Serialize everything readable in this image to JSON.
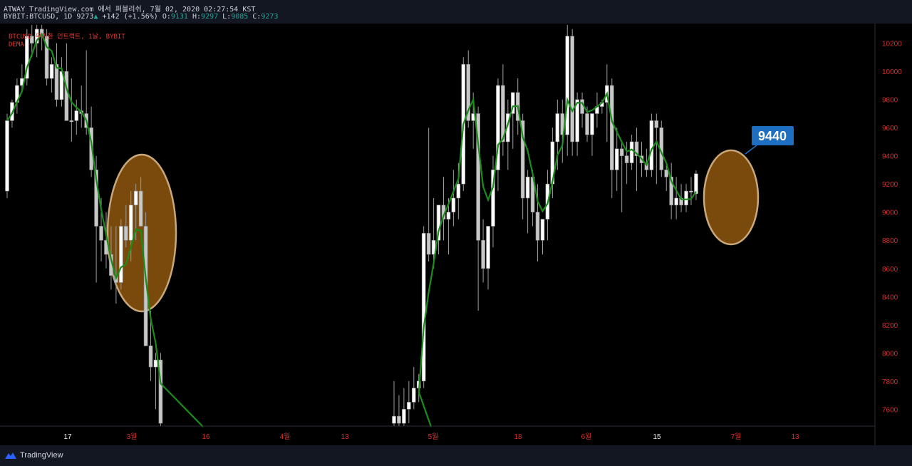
{
  "header": {
    "line1": "ATWAY TradingView.com 에서 퍼블리쉬, 7월 02, 2020 02:27:54 KST",
    "symbol": "BYBIT:BTCUSD, 1D",
    "last": "9273",
    "change": "+142 (+1.56%)",
    "open_label": "O:",
    "open": "9131",
    "high_label": "H:",
    "high": "9297",
    "low_label": "L:",
    "low": "9085",
    "close_label": "C:",
    "close": "9273"
  },
  "legend": {
    "series": "BTCUSD 무기한 인트랙트, 1날, BYBIT",
    "indicator": "DEMA"
  },
  "footer": {
    "brand": "TradingView"
  },
  "chart_data": {
    "type": "candlestick",
    "y_ticks": [
      7600,
      7800,
      8000,
      8200,
      8400,
      8600,
      8800,
      9000,
      9200,
      9400,
      9600,
      9800,
      10000,
      10200
    ],
    "x_ticks": [
      {
        "label": "17",
        "red": false
      },
      {
        "label": "3월",
        "red": true
      },
      {
        "label": "16",
        "red": true
      },
      {
        "label": "4월",
        "red": true
      },
      {
        "label": "13",
        "red": true
      },
      {
        "label": "5월",
        "red": true
      },
      {
        "label": "18",
        "red": true
      },
      {
        "label": "6월",
        "red": true
      },
      {
        "label": "15",
        "red": false
      },
      {
        "label": "7월",
        "red": true
      },
      {
        "label": "13",
        "red": true
      }
    ],
    "ylim": [
      7480,
      10330
    ],
    "annotation": {
      "text": "9440"
    },
    "colors": {
      "candle": "#c8c8c8",
      "dema": "#1b8c1b",
      "highlight_fill": "#7a4a0c",
      "highlight_stroke": "#c8a87a",
      "callout": "#1e6fc2",
      "axis_text": "#d32f2f",
      "axis_text_alt": "#f0f0f0"
    },
    "candles_feb_mar": [
      [
        9150,
        9700,
        9100,
        9650
      ],
      [
        9650,
        9800,
        9600,
        9780
      ],
      [
        9780,
        9950,
        9700,
        9900
      ],
      [
        9900,
        10050,
        9850,
        9950
      ],
      [
        9950,
        10300,
        9900,
        10250
      ],
      [
        10250,
        10330,
        10100,
        10200
      ],
      [
        10200,
        10330,
        10100,
        10300
      ],
      [
        10300,
        10330,
        10150,
        10250
      ],
      [
        10250,
        10300,
        9900,
        9950
      ],
      [
        9950,
        10100,
        9850,
        10050
      ],
      [
        10050,
        10200,
        9750,
        9800
      ],
      [
        9800,
        10100,
        9750,
        10000
      ],
      [
        10000,
        10200,
        9750,
        9650
      ],
      [
        9650,
        9950,
        9500,
        9650
      ],
      [
        9650,
        9800,
        9550,
        9720
      ],
      [
        9720,
        9900,
        9600,
        9700
      ],
      [
        9700,
        10150,
        9550,
        9600
      ],
      [
        9600,
        9750,
        9250,
        9300
      ],
      [
        9300,
        9400,
        8500,
        8900
      ],
      [
        8900,
        9100,
        8650,
        8800
      ],
      [
        8800,
        9000,
        8600,
        8700
      ],
      [
        8700,
        8900,
        8450,
        8550
      ],
      [
        8550,
        8900,
        8350,
        8500
      ],
      [
        8500,
        8950,
        8450,
        8900
      ],
      [
        8900,
        9050,
        8750,
        8800
      ],
      [
        8800,
        9150,
        8650,
        9050
      ],
      [
        9050,
        9200,
        8800,
        9150
      ],
      [
        9150,
        9250,
        8900,
        8900
      ],
      [
        8900,
        9000,
        8200,
        8050
      ],
      [
        8050,
        8300,
        7800,
        7900
      ],
      [
        7900,
        8000,
        7600,
        7950
      ],
      [
        7950,
        8000,
        7480,
        7500
      ]
    ],
    "candles_may_jul": [
      [
        7500,
        7800,
        7480,
        7550
      ],
      [
        7550,
        7700,
        7480,
        7500
      ],
      [
        7500,
        7750,
        7480,
        7600
      ],
      [
        7600,
        7800,
        7500,
        7650
      ],
      [
        7650,
        7900,
        7600,
        7750
      ],
      [
        7750,
        7850,
        7650,
        7800
      ],
      [
        7800,
        8900,
        7750,
        8850
      ],
      [
        8850,
        9600,
        8650,
        8700
      ],
      [
        8700,
        9100,
        8600,
        8800
      ],
      [
        8800,
        9000,
        8700,
        9050
      ],
      [
        9050,
        9250,
        8800,
        8950
      ],
      [
        8950,
        9100,
        8700,
        9000
      ],
      [
        9000,
        9300,
        8900,
        9100
      ],
      [
        9100,
        9350,
        8950,
        9200
      ],
      [
        9200,
        10100,
        9150,
        10050
      ],
      [
        10050,
        10150,
        9600,
        9650
      ],
      [
        9650,
        9850,
        9450,
        9700
      ],
      [
        9700,
        9750,
        8300,
        8800
      ],
      [
        8800,
        8950,
        8500,
        8600
      ],
      [
        8600,
        8900,
        8450,
        8900
      ],
      [
        8900,
        9400,
        8750,
        9300
      ],
      [
        9300,
        9950,
        9150,
        9900
      ],
      [
        9900,
        10050,
        9400,
        9500
      ],
      [
        9500,
        9800,
        9300,
        9700
      ],
      [
        9700,
        9850,
        9450,
        9850
      ],
      [
        9850,
        9950,
        9550,
        9650
      ],
      [
        9650,
        9700,
        8950,
        9100
      ],
      [
        9100,
        9300,
        8850,
        9250
      ],
      [
        9250,
        9300,
        8900,
        9000
      ],
      [
        9000,
        9200,
        8650,
        8800
      ],
      [
        8800,
        8950,
        8700,
        8950
      ],
      [
        8950,
        9300,
        8800,
        9200
      ],
      [
        9200,
        9600,
        9100,
        9500
      ],
      [
        9500,
        9800,
        9300,
        9700
      ],
      [
        9700,
        9800,
        9350,
        9550
      ],
      [
        9550,
        10330,
        9400,
        10250
      ],
      [
        10250,
        10300,
        9400,
        9500
      ],
      [
        9500,
        9850,
        9400,
        9800
      ],
      [
        9800,
        9850,
        9600,
        9700
      ],
      [
        9700,
        9750,
        9500,
        9550
      ],
      [
        9550,
        9700,
        9400,
        9700
      ],
      [
        9700,
        9850,
        9600,
        9750
      ],
      [
        9750,
        9800,
        9700,
        9780
      ],
      [
        9780,
        10050,
        9500,
        9900
      ],
      [
        9900,
        9950,
        9100,
        9300
      ],
      [
        9300,
        9600,
        9150,
        9450
      ],
      [
        9450,
        9500,
        9000,
        9400
      ],
      [
        9400,
        9500,
        9200,
        9350
      ],
      [
        9350,
        9550,
        9300,
        9500
      ],
      [
        9500,
        9600,
        9150,
        9400
      ],
      [
        9400,
        9500,
        9250,
        9350
      ],
      [
        9350,
        9450,
        9250,
        9300
      ],
      [
        9300,
        9700,
        9250,
        9650
      ],
      [
        9650,
        9700,
        9200,
        9600
      ],
      [
        9600,
        9650,
        9250,
        9300
      ],
      [
        9300,
        9350,
        9150,
        9250
      ],
      [
        9250,
        9350,
        8950,
        9050
      ],
      [
        9050,
        9250,
        8950,
        9100
      ],
      [
        9100,
        9200,
        9000,
        9050
      ],
      [
        9050,
        9200,
        9000,
        9150
      ],
      [
        9150,
        9250,
        9050,
        9150
      ],
      [
        9131,
        9297,
        9085,
        9273
      ]
    ]
  }
}
